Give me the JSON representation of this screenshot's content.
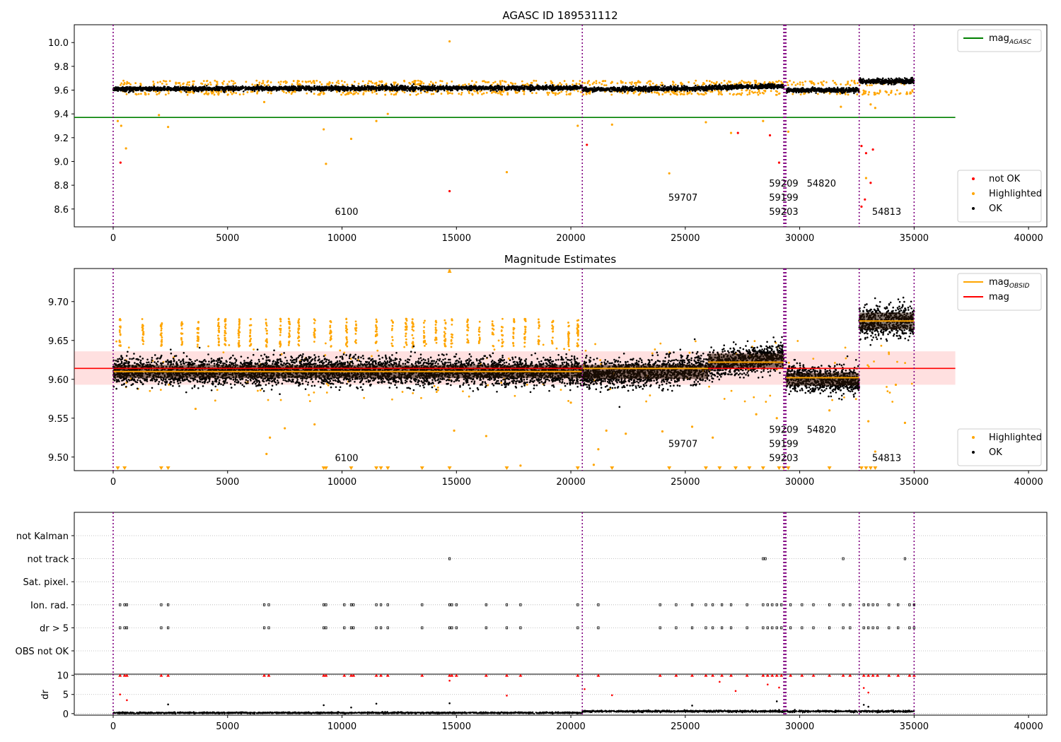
{
  "chart_data": [
    {
      "type": "scatter",
      "title": "AGASC ID 189531112",
      "xlim": [
        -1700,
        40800
      ],
      "ylim": [
        8.45,
        10.15
      ],
      "x_ticks": [
        0,
        5000,
        10000,
        15000,
        20000,
        25000,
        30000,
        35000,
        40000
      ],
      "x_tick_labels": [
        "0",
        "5000",
        "10000",
        "15000",
        "20000",
        "25000",
        "30000",
        "35000",
        "40000"
      ],
      "y_ticks": [
        8.6,
        8.8,
        9.0,
        9.2,
        9.4,
        9.6,
        9.8,
        10.0
      ],
      "y_tick_labels": [
        "8.6",
        "8.8",
        "9.0",
        "9.2",
        "9.4",
        "9.6",
        "9.8",
        "10.0"
      ],
      "legend_top": {
        "position": "top-right",
        "entries": [
          {
            "label": "mag",
            "sub": "AGASC",
            "color": "#008000",
            "kind": "line"
          }
        ]
      },
      "legend_bottom": {
        "position": "bottom-right",
        "entries": [
          {
            "label": "not OK",
            "color": "#ff0000",
            "kind": "dot"
          },
          {
            "label": "Highlighted",
            "color": "#ffa500",
            "kind": "dot"
          },
          {
            "label": "OK",
            "color": "#000000",
            "kind": "dot"
          }
        ]
      },
      "reference_line": {
        "name": "mag_AGASC",
        "y": 9.37,
        "x_range": [
          -1700,
          36800
        ],
        "color": "#008000"
      },
      "obsid_boundaries": [
        0,
        20500,
        29300,
        29350,
        29400,
        32600,
        35000
      ],
      "annotations": [
        {
          "text": "6100",
          "x": 10200,
          "y": 8.55
        },
        {
          "text": "59707",
          "x": 24900,
          "y": 8.67
        },
        {
          "text": "59209",
          "x": 29300,
          "y": 8.79
        },
        {
          "text": "54820",
          "x": 30950,
          "y": 8.79
        },
        {
          "text": "59199",
          "x": 29300,
          "y": 8.67
        },
        {
          "text": "59203",
          "x": 29300,
          "y": 8.55
        },
        {
          "text": "54813",
          "x": 33800,
          "y": 8.55
        }
      ],
      "ok_segments": [
        {
          "x": [
            0,
            20500
          ],
          "y": [
            9.61,
            9.62
          ],
          "spread": 0.02
        },
        {
          "x": [
            20500,
            26000
          ],
          "y": [
            9.605,
            9.615
          ],
          "spread": 0.02
        },
        {
          "x": [
            26000,
            29300
          ],
          "y": [
            9.62,
            9.635
          ],
          "spread": 0.02
        },
        {
          "x": [
            29400,
            32600
          ],
          "y": [
            9.6,
            9.6
          ],
          "spread": 0.02
        },
        {
          "x": [
            32600,
            35000
          ],
          "y": [
            9.675,
            9.675
          ],
          "spread": 0.025
        }
      ],
      "highlighted_points": [
        {
          "x": 200,
          "y": 9.34
        },
        {
          "x": 350,
          "y": 9.3
        },
        {
          "x": 560,
          "y": 9.11
        },
        {
          "x": 2000,
          "y": 9.39
        },
        {
          "x": 2400,
          "y": 9.29
        },
        {
          "x": 6600,
          "y": 9.5
        },
        {
          "x": 9200,
          "y": 9.27
        },
        {
          "x": 9300,
          "y": 8.98
        },
        {
          "x": 10400,
          "y": 9.19
        },
        {
          "x": 11500,
          "y": 9.34
        },
        {
          "x": 12000,
          "y": 9.4
        },
        {
          "x": 14700,
          "y": 10.01
        },
        {
          "x": 17200,
          "y": 8.91
        },
        {
          "x": 20300,
          "y": 9.3
        },
        {
          "x": 21800,
          "y": 9.31
        },
        {
          "x": 24300,
          "y": 8.9
        },
        {
          "x": 25900,
          "y": 9.33
        },
        {
          "x": 27000,
          "y": 9.24
        },
        {
          "x": 28400,
          "y": 9.34
        },
        {
          "x": 29500,
          "y": 9.25
        },
        {
          "x": 31800,
          "y": 9.46
        },
        {
          "x": 33100,
          "y": 9.48
        },
        {
          "x": 33300,
          "y": 9.45
        },
        {
          "x": 32900,
          "y": 8.86
        }
      ],
      "not_ok_points": [
        {
          "x": 320,
          "y": 8.99
        },
        {
          "x": 14700,
          "y": 8.75
        },
        {
          "x": 20700,
          "y": 9.14
        },
        {
          "x": 27300,
          "y": 9.24
        },
        {
          "x": 28700,
          "y": 9.22
        },
        {
          "x": 29100,
          "y": 8.99
        },
        {
          "x": 32700,
          "y": 9.13
        },
        {
          "x": 32900,
          "y": 9.07
        },
        {
          "x": 33100,
          "y": 8.82
        },
        {
          "x": 33200,
          "y": 9.1
        },
        {
          "x": 32700,
          "y": 8.62
        },
        {
          "x": 32850,
          "y": 8.68
        }
      ]
    },
    {
      "type": "scatter",
      "title": "Magnitude Estimates",
      "xlim": [
        -1700,
        40800
      ],
      "ylim": [
        9.4825,
        9.7425
      ],
      "x_ticks": [
        0,
        5000,
        10000,
        15000,
        20000,
        25000,
        30000,
        35000,
        40000
      ],
      "x_tick_labels": [
        "0",
        "5000",
        "10000",
        "15000",
        "20000",
        "25000",
        "30000",
        "35000",
        "40000"
      ],
      "y_ticks": [
        9.5,
        9.55,
        9.6,
        9.65,
        9.7
      ],
      "y_tick_labels": [
        "9.50",
        "9.55",
        "9.60",
        "9.65",
        "9.70"
      ],
      "legend_top": {
        "position": "top-right",
        "entries": [
          {
            "label": "mag",
            "sub": "OBSID",
            "color": "#ffa500",
            "kind": "line"
          },
          {
            "label": "mag",
            "sub": "",
            "color": "#ff0000",
            "kind": "line"
          }
        ]
      },
      "legend_bottom": {
        "position": "bottom-right",
        "entries": [
          {
            "label": "Highlighted",
            "color": "#ffa500",
            "kind": "dot"
          },
          {
            "label": "OK",
            "color": "#000000",
            "kind": "dot"
          }
        ]
      },
      "mag_line": {
        "y": 9.614,
        "band": [
          9.593,
          9.636
        ],
        "x_range": [
          -1700,
          36800
        ],
        "color": "#ff0000"
      },
      "obsid_mag": [
        {
          "x": [
            0,
            20500
          ],
          "y": 9.61
        },
        {
          "x": [
            20500,
            26000
          ],
          "y": 9.614
        },
        {
          "x": [
            26000,
            29300
          ],
          "y": 9.622
        },
        {
          "x": [
            29400,
            32600
          ],
          "y": 9.602
        },
        {
          "x": [
            32600,
            35000
          ],
          "y": 9.675
        }
      ],
      "obsid_boundaries": [
        0,
        20500,
        29300,
        29350,
        29400,
        32600,
        35000
      ],
      "annotations": [
        {
          "text": "6100",
          "x": 10200,
          "y": 9.495
        },
        {
          "text": "59707",
          "x": 24900,
          "y": 9.513
        },
        {
          "text": "59209",
          "x": 29300,
          "y": 9.531
        },
        {
          "text": "54820",
          "x": 30950,
          "y": 9.531
        },
        {
          "text": "59199",
          "x": 29300,
          "y": 9.513
        },
        {
          "text": "59203",
          "x": 29300,
          "y": 9.495
        },
        {
          "text": "54813",
          "x": 33800,
          "y": 9.495
        }
      ],
      "ok_segments": [
        {
          "x": [
            0,
            20500
          ],
          "y": [
            9.61,
            9.61
          ],
          "spread": 0.019
        },
        {
          "x": [
            20500,
            26000
          ],
          "y": [
            9.605,
            9.614
          ],
          "spread": 0.02
        },
        {
          "x": [
            26000,
            29300
          ],
          "y": [
            9.618,
            9.63
          ],
          "spread": 0.02
        },
        {
          "x": [
            29400,
            32600
          ],
          "y": [
            9.602,
            9.598
          ],
          "spread": 0.018
        },
        {
          "x": [
            32600,
            35000
          ],
          "y": [
            9.675,
            9.675
          ],
          "spread": 0.024
        }
      ],
      "highlighted_points": [
        {
          "x": 14700,
          "y": 9.74
        },
        {
          "x": 6700,
          "y": 9.504
        },
        {
          "x": 6850,
          "y": 9.525
        },
        {
          "x": 7500,
          "y": 9.537
        },
        {
          "x": 8800,
          "y": 9.542
        },
        {
          "x": 14900,
          "y": 9.534
        },
        {
          "x": 16300,
          "y": 9.527
        },
        {
          "x": 17800,
          "y": 9.489
        },
        {
          "x": 21200,
          "y": 9.51
        },
        {
          "x": 21550,
          "y": 9.534
        },
        {
          "x": 22400,
          "y": 9.53
        },
        {
          "x": 24000,
          "y": 9.533
        },
        {
          "x": 25300,
          "y": 9.539
        },
        {
          "x": 26200,
          "y": 9.525
        },
        {
          "x": 29000,
          "y": 9.55
        },
        {
          "x": 33000,
          "y": 9.546
        },
        {
          "x": 33300,
          "y": 9.507
        },
        {
          "x": 34600,
          "y": 9.544
        },
        {
          "x": 34200,
          "y": 9.593
        },
        {
          "x": 31300,
          "y": 9.56
        },
        {
          "x": 28100,
          "y": 9.555
        },
        {
          "x": 21000,
          "y": 9.49
        },
        {
          "x": 20000,
          "y": 9.57
        },
        {
          "x": 3600,
          "y": 9.562
        }
      ],
      "lower_clipped_x": [
        200,
        500,
        2100,
        2400,
        9200,
        9300,
        10400,
        11500,
        11700,
        12000,
        13500,
        14700,
        17200,
        20300,
        21800,
        24300,
        25900,
        26500,
        27200,
        27800,
        28400,
        29100,
        29300,
        29500,
        31300,
        32700,
        32900,
        33100,
        33300
      ],
      "highlighted_column_x": [
        300,
        1300,
        2100,
        3000,
        3700,
        4600,
        4900,
        5500,
        6000,
        6700,
        7300,
        7700,
        8100,
        8800,
        9500,
        10200,
        10600,
        11500,
        12200,
        12800,
        13100,
        13600,
        14100,
        14500,
        14800,
        15500,
        16000,
        16600,
        17000,
        17500,
        18000,
        18600,
        19200,
        19900,
        20300
      ]
    },
    {
      "type": "scatter",
      "title": "",
      "xlim": [
        -1700,
        40800
      ],
      "x_ticks": [
        0,
        5000,
        10000,
        15000,
        20000,
        25000,
        30000,
        35000,
        40000
      ],
      "x_tick_labels": [
        "0",
        "5000",
        "10000",
        "15000",
        "20000",
        "25000",
        "30000",
        "35000",
        "40000"
      ],
      "flag_categories": [
        "not Kalman",
        "not track",
        "Sat. pixel.",
        "Ion. rad.",
        "dr > 5",
        "OBS not OK"
      ],
      "flags": [
        {
          "category": "not track",
          "x": [
            14700,
            28400,
            28500,
            31900,
            34600
          ]
        },
        {
          "category": "Ion. rad.",
          "x": [
            300,
            500,
            600,
            2100,
            2400,
            6600,
            6800,
            9200,
            9300,
            10100,
            10400,
            10500,
            11500,
            11700,
            12000,
            13500,
            14700,
            14800,
            15000,
            16300,
            17200,
            17800,
            20300,
            21200,
            23900,
            24600,
            25300,
            25900,
            26200,
            26600,
            27000,
            27700,
            28400,
            28600,
            28800,
            29000,
            29200,
            29600,
            30100,
            30600,
            31300,
            31900,
            32200,
            32800,
            33000,
            33200,
            33400,
            33900,
            34300,
            34800,
            35000
          ]
        },
        {
          "category": "dr > 5",
          "x": [
            300,
            500,
            600,
            2100,
            2400,
            6600,
            6800,
            9200,
            9300,
            10100,
            10400,
            10500,
            11500,
            11700,
            12000,
            13500,
            14700,
            14800,
            15000,
            16300,
            17200,
            17800,
            20300,
            21200,
            23900,
            24600,
            25300,
            25900,
            26200,
            26600,
            27000,
            27700,
            28400,
            28600,
            28800,
            29000,
            29200,
            29600,
            30100,
            30600,
            31300,
            31900,
            32200,
            32800,
            33000,
            33200,
            33400,
            33900,
            34300,
            34800,
            35000
          ]
        }
      ],
      "obsid_boundaries": [
        0,
        20500,
        29300,
        29350,
        29400,
        32600,
        35000
      ]
    },
    {
      "type": "scatter",
      "title": "",
      "ylabel": "dr",
      "xlim": [
        -1700,
        40800
      ],
      "ylim": [
        -0.4,
        10.3
      ],
      "x_ticks": [
        0,
        5000,
        10000,
        15000,
        20000,
        25000,
        30000,
        35000,
        40000
      ],
      "x_tick_labels": [
        "0",
        "5000",
        "10000",
        "15000",
        "20000",
        "25000",
        "30000",
        "35000",
        "40000"
      ],
      "y_ticks": [
        0,
        5,
        10
      ],
      "y_tick_labels": [
        "0",
        "5",
        "10"
      ],
      "ok_segments": [
        {
          "x": [
            0,
            20500
          ],
          "y": [
            0.2,
            0.2
          ],
          "spread": 0.2
        },
        {
          "x": [
            20500,
            35000
          ],
          "y": [
            0.6,
            0.6
          ],
          "spread": 0.25
        }
      ],
      "outlier_points_black": [
        {
          "x": 2400,
          "y": 2.4
        },
        {
          "x": 9200,
          "y": 2.2
        },
        {
          "x": 10400,
          "y": 1.6
        },
        {
          "x": 11500,
          "y": 2.6
        },
        {
          "x": 14700,
          "y": 2.7
        },
        {
          "x": 25300,
          "y": 2.1
        },
        {
          "x": 29000,
          "y": 3.2
        },
        {
          "x": 32800,
          "y": 2.3
        },
        {
          "x": 33000,
          "y": 1.8
        }
      ],
      "outlier_points_red": [
        {
          "x": 300,
          "y": 5.0
        },
        {
          "x": 600,
          "y": 3.5
        },
        {
          "x": 14700,
          "y": 8.6
        },
        {
          "x": 17200,
          "y": 4.7
        },
        {
          "x": 20600,
          "y": 6.4
        },
        {
          "x": 21800,
          "y": 4.8
        },
        {
          "x": 26500,
          "y": 8.3
        },
        {
          "x": 27200,
          "y": 5.9
        },
        {
          "x": 28600,
          "y": 7.6
        },
        {
          "x": 29100,
          "y": 6.8
        },
        {
          "x": 32800,
          "y": 6.7
        },
        {
          "x": 33000,
          "y": 5.5
        }
      ],
      "clipped_at_10_x": [
        300,
        500,
        600,
        2100,
        2400,
        6600,
        6800,
        9200,
        9300,
        10100,
        10400,
        10500,
        11500,
        11700,
        12000,
        13500,
        14700,
        14800,
        15000,
        16300,
        17200,
        17800,
        20300,
        21200,
        23900,
        24600,
        25300,
        25900,
        26200,
        26600,
        27000,
        27700,
        28400,
        28600,
        28800,
        29000,
        29200,
        29600,
        30100,
        30600,
        31300,
        31900,
        32200,
        32800,
        33000,
        33200,
        33400,
        33900,
        34300,
        34800,
        35000
      ],
      "obsid_boundaries": [
        0,
        20500,
        29300,
        29350,
        29400,
        32600,
        35000
      ]
    }
  ]
}
